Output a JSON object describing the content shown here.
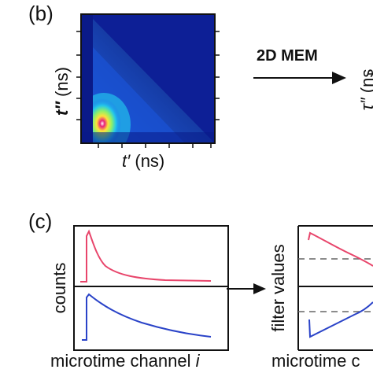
{
  "panel_b": {
    "label": "(b)",
    "ylabel_var": "t″",
    "ylabel_unit": " (ns)",
    "xlabel_var": "t′",
    "xlabel_unit": " (ns)",
    "arrow_label": "2D MEM",
    "right_ylabel_var": "τ″",
    "right_ylabel_unit": " (ns"
  },
  "panel_c": {
    "label": "(c)",
    "left_ylabel": "counts",
    "left_xlabel_text": "microtime channel ",
    "left_xlabel_var": "i",
    "right_ylabel": "filter values",
    "right_xlabel": "microtime c"
  },
  "colors": {
    "heatmap_bg": "#0d1f96",
    "red_trace": "#e8456b",
    "blue_trace": "#2a43c8",
    "dashed": "#666666"
  }
}
